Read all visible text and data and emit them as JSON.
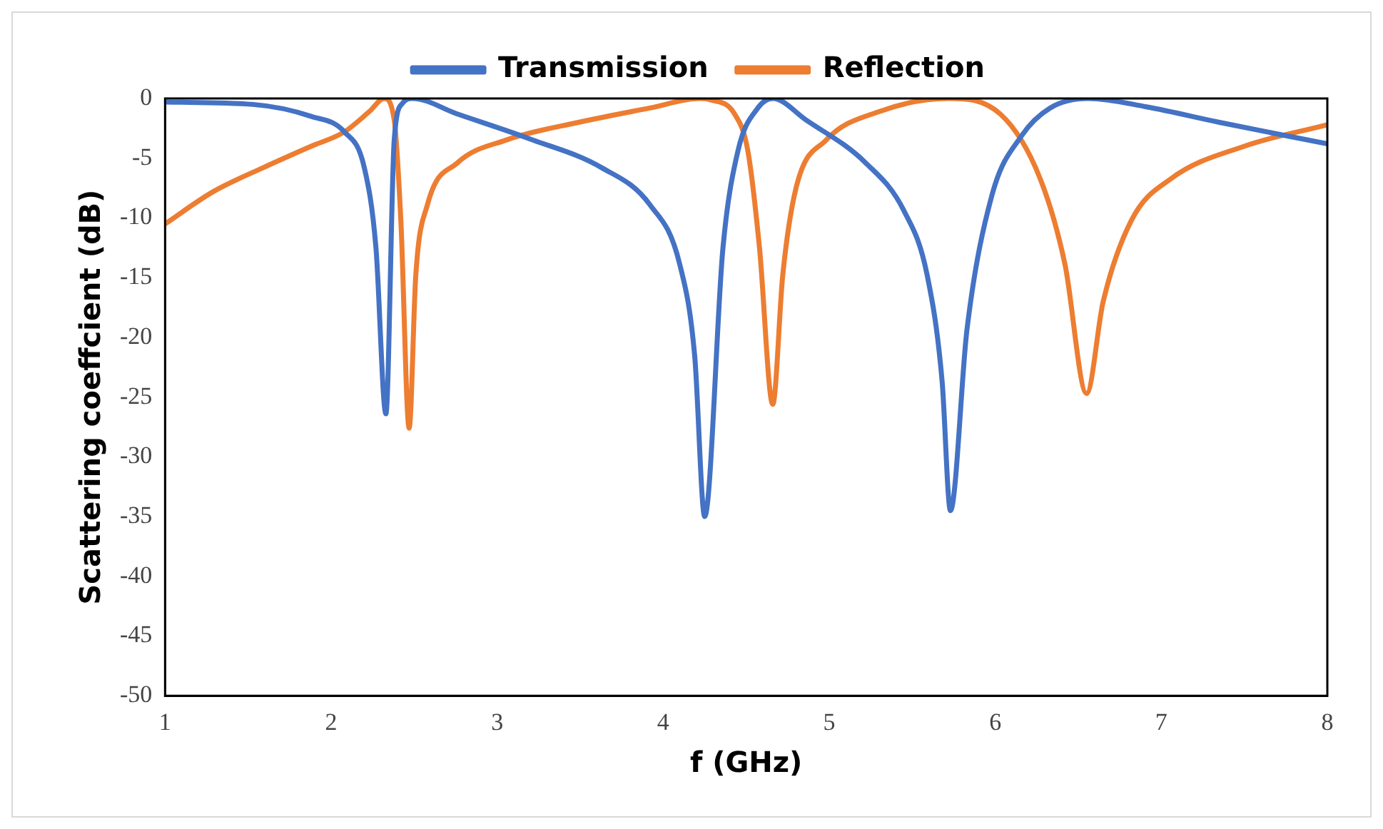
{
  "chart_data": {
    "type": "line",
    "xlabel": "f (GHz)",
    "ylabel": "Scattering coeffcient (dB)",
    "xlim": [
      1,
      8
    ],
    "xticks": [
      1,
      2,
      3,
      4,
      5,
      6,
      7,
      8
    ],
    "ylim": [
      -50,
      0
    ],
    "yticks": [
      -50,
      -45,
      -40,
      -35,
      -30,
      -25,
      -20,
      -15,
      -10,
      -5,
      0
    ],
    "grid": false,
    "legend": "top",
    "marker": "none",
    "line_style": "solid",
    "series": [
      {
        "name": "Transmission",
        "color": "#4472c4",
        "x": [
          1,
          1.53,
          1.88,
          2.08,
          2.2,
          2.27,
          2.33,
          2.38,
          2.43,
          2.49,
          2.76,
          3.2,
          3.63,
          3.92,
          4.1,
          4.19,
          4.25,
          4.36,
          4.45,
          4.57,
          4.66,
          4.86,
          5.22,
          5.45,
          5.59,
          5.68,
          5.73,
          5.83,
          5.98,
          6.16,
          6.33,
          6.56,
          6.91,
          7.35,
          8
        ],
        "values": [
          -0.3,
          -0.5,
          -1.5,
          -2.8,
          -5.8,
          -12.5,
          -26.4,
          -3.5,
          -0.4,
          0,
          -1.3,
          -3.4,
          -5.8,
          -8.9,
          -13.9,
          -21.6,
          -35,
          -12.5,
          -4.4,
          -0.8,
          0,
          -1.8,
          -5.4,
          -9.4,
          -14.8,
          -23.7,
          -34.5,
          -19.3,
          -8.1,
          -3.1,
          -0.8,
          0,
          -0.7,
          -2,
          -3.8
        ]
      },
      {
        "name": "Reflection",
        "color": "#ed7d31",
        "x": [
          1,
          1.29,
          1.59,
          1.88,
          2.08,
          2.23,
          2.32,
          2.38,
          2.42,
          2.47,
          2.51,
          2.58,
          2.76,
          3.05,
          3.49,
          3.92,
          4.22,
          4.28,
          4.43,
          4.51,
          4.58,
          4.66,
          4.72,
          4.8,
          4.98,
          5.3,
          5.72,
          6.03,
          6.27,
          6.42,
          6.55,
          6.65,
          6.82,
          7.06,
          7.5,
          8
        ],
        "values": [
          -10.5,
          -7.8,
          -5.8,
          -4,
          -2.8,
          -1.1,
          0,
          -1.8,
          -10.2,
          -27.6,
          -14.8,
          -8.9,
          -5.4,
          -3.5,
          -2,
          -0.8,
          0,
          -0.1,
          -1.3,
          -4.4,
          -12.5,
          -25.6,
          -14.8,
          -7.5,
          -3.5,
          -1.1,
          0,
          -1.3,
          -6.7,
          -13.9,
          -24.7,
          -17,
          -10.2,
          -6.7,
          -4,
          -2.2
        ]
      }
    ]
  }
}
